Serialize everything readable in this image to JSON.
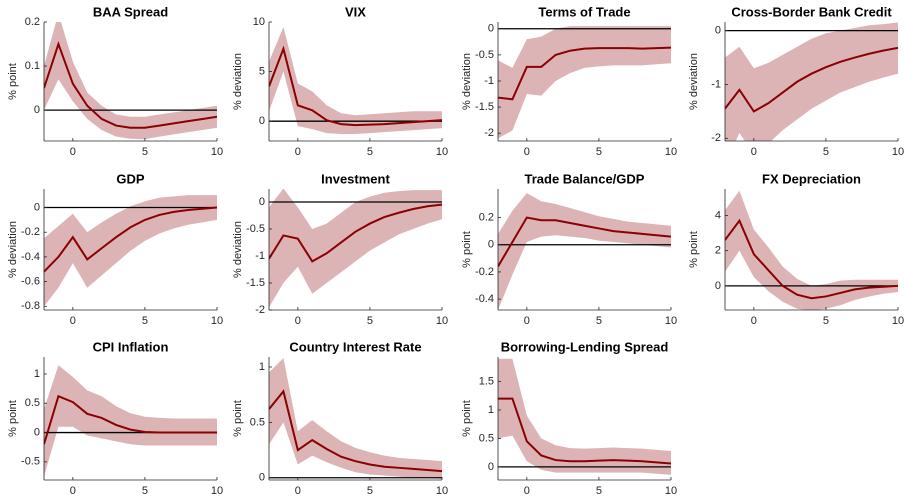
{
  "chart_data": [
    {
      "type": "line",
      "title": "BAA Spread",
      "ylabel": "% point",
      "x": [
        -2,
        -1,
        0,
        1,
        2,
        3,
        4,
        5,
        6,
        7,
        8,
        9,
        10
      ],
      "values": [
        0.05,
        0.15,
        0.06,
        0.01,
        -0.02,
        -0.035,
        -0.04,
        -0.04,
        -0.035,
        -0.03,
        -0.025,
        -0.02,
        -0.015
      ],
      "lower": [
        0.0,
        0.07,
        0.02,
        -0.02,
        -0.045,
        -0.06,
        -0.065,
        -0.066,
        -0.06,
        -0.055,
        -0.05,
        -0.045,
        -0.04
      ],
      "upper": [
        0.1,
        0.22,
        0.11,
        0.04,
        0.01,
        -0.01,
        -0.015,
        -0.015,
        -0.01,
        -0.005,
        0,
        0.005,
        0.01
      ],
      "color": "#8b0000",
      "band_color": "#dcb4b6",
      "zero_line": true,
      "xlim": [
        -2,
        10
      ],
      "xticks": [
        0,
        5,
        10
      ],
      "ylim": [
        -0.07,
        0.2
      ],
      "yticks": [
        0,
        0.1,
        0.2
      ]
    },
    {
      "type": "line",
      "title": "VIX",
      "ylabel": "% deviation",
      "x": [
        -2,
        -1,
        0,
        1,
        2,
        3,
        4,
        5,
        6,
        7,
        8,
        9,
        10
      ],
      "values": [
        3.5,
        7.3,
        1.6,
        1.1,
        0.1,
        -0.3,
        -0.4,
        -0.35,
        -0.3,
        -0.2,
        -0.1,
        0,
        0.1
      ],
      "lower": [
        1,
        5,
        -0.5,
        -0.8,
        -1.2,
        -1.3,
        -1.3,
        -1.2,
        -1.1,
        -1.0,
        -0.9,
        -0.8,
        -0.7
      ],
      "upper": [
        6,
        9.5,
        3.8,
        3,
        1.6,
        0.8,
        0.6,
        0.7,
        0.8,
        0.9,
        1,
        1,
        1
      ],
      "color": "#8b0000",
      "band_color": "#dcb4b6",
      "zero_line": true,
      "xlim": [
        -2,
        10
      ],
      "xticks": [
        0,
        5,
        10
      ],
      "ylim": [
        -2,
        10
      ],
      "yticks": [
        0,
        5,
        10
      ]
    },
    {
      "type": "line",
      "title": "Terms of Trade",
      "ylabel": "% deviation",
      "x": [
        -2,
        -1,
        0,
        1,
        2,
        3,
        4,
        5,
        6,
        7,
        8,
        9,
        10
      ],
      "values": [
        -1.32,
        -1.35,
        -0.73,
        -0.73,
        -0.5,
        -0.42,
        -0.38,
        -0.37,
        -0.37,
        -0.37,
        -0.38,
        -0.37,
        -0.36
      ],
      "lower": [
        -2.1,
        -1.95,
        -1.25,
        -1.28,
        -1.0,
        -0.85,
        -0.75,
        -0.72,
        -0.7,
        -0.7,
        -0.7,
        -0.68,
        -0.66
      ],
      "upper": [
        -0.6,
        -0.75,
        -0.2,
        -0.15,
        0,
        0.05,
        0.05,
        0.05,
        0.05,
        0.05,
        0.05,
        0.05,
        0.05
      ],
      "color": "#8b0000",
      "band_color": "#dcb4b6",
      "zero_line": true,
      "xlim": [
        -2,
        10
      ],
      "xticks": [
        0,
        5,
        10
      ],
      "ylim": [
        -2.15,
        0.13
      ],
      "yticks": [
        -2,
        -1.5,
        -1,
        -0.5,
        0
      ]
    },
    {
      "type": "line",
      "title": "Cross-Border Bank Credit",
      "ylabel": "% deviation",
      "x": [
        -2,
        -1,
        0,
        1,
        2,
        3,
        4,
        5,
        6,
        7,
        8,
        9,
        10
      ],
      "values": [
        -1.45,
        -1.1,
        -1.5,
        -1.35,
        -1.15,
        -0.95,
        -0.8,
        -0.68,
        -0.58,
        -0.5,
        -0.43,
        -0.37,
        -0.32
      ],
      "lower": [
        -2.5,
        -1.9,
        -2.3,
        -2.1,
        -1.85,
        -1.65,
        -1.45,
        -1.3,
        -1.15,
        -1.05,
        -0.95,
        -0.87,
        -0.8
      ],
      "upper": [
        -0.5,
        -0.3,
        -0.7,
        -0.6,
        -0.45,
        -0.3,
        -0.15,
        -0.05,
        0,
        0.05,
        0.1,
        0.12,
        0.15
      ],
      "color": "#8b0000",
      "band_color": "#dcb4b6",
      "zero_line": true,
      "xlim": [
        -2,
        10
      ],
      "xticks": [
        0,
        5,
        10
      ],
      "ylim": [
        -2.05,
        0.16
      ],
      "yticks": [
        -2,
        -1,
        0
      ]
    },
    {
      "type": "line",
      "title": "GDP",
      "ylabel": "% deviation",
      "x": [
        -2,
        -1,
        0,
        1,
        2,
        3,
        4,
        5,
        6,
        7,
        8,
        9,
        10
      ],
      "values": [
        -0.52,
        -0.4,
        -0.24,
        -0.42,
        -0.33,
        -0.24,
        -0.16,
        -0.1,
        -0.06,
        -0.035,
        -0.02,
        -0.01,
        0
      ],
      "lower": [
        -0.8,
        -0.65,
        -0.45,
        -0.65,
        -0.55,
        -0.45,
        -0.35,
        -0.27,
        -0.21,
        -0.17,
        -0.14,
        -0.12,
        -0.1
      ],
      "upper": [
        -0.25,
        -0.15,
        -0.05,
        -0.2,
        -0.12,
        -0.05,
        0.01,
        0.05,
        0.08,
        0.09,
        0.1,
        0.1,
        0.1
      ],
      "color": "#8b0000",
      "band_color": "#dcb4b6",
      "zero_line": true,
      "xlim": [
        -2,
        10
      ],
      "xticks": [
        0,
        5,
        10
      ],
      "ylim": [
        -0.83,
        0.15
      ],
      "yticks": [
        -0.8,
        -0.6,
        -0.4,
        -0.2,
        0
      ]
    },
    {
      "type": "line",
      "title": "Investment",
      "ylabel": "% deviation",
      "x": [
        -2,
        -1,
        0,
        1,
        2,
        3,
        4,
        5,
        6,
        7,
        8,
        9,
        10
      ],
      "values": [
        -1.05,
        -0.62,
        -0.68,
        -1.1,
        -0.95,
        -0.75,
        -0.55,
        -0.4,
        -0.28,
        -0.2,
        -0.13,
        -0.08,
        -0.05
      ],
      "lower": [
        -1.95,
        -1.5,
        -1.2,
        -1.7,
        -1.5,
        -1.3,
        -1.1,
        -0.9,
        -0.75,
        -0.6,
        -0.5,
        -0.4,
        -0.32
      ],
      "upper": [
        -0.1,
        0.25,
        -0.1,
        -0.5,
        -0.4,
        -0.2,
        0,
        0.1,
        0.17,
        0.2,
        0.22,
        0.22,
        0.22
      ],
      "color": "#8b0000",
      "band_color": "#dcb4b6",
      "zero_line": true,
      "xlim": [
        -2,
        10
      ],
      "xticks": [
        0,
        5,
        10
      ],
      "ylim": [
        -2,
        0.24
      ],
      "yticks": [
        -2,
        -1.5,
        -1,
        -0.5,
        0
      ]
    },
    {
      "type": "line",
      "title": "Trade Balance/GDP",
      "ylabel": "% point",
      "x": [
        -2,
        -1,
        0,
        1,
        2,
        3,
        4,
        5,
        6,
        7,
        8,
        9,
        10
      ],
      "values": [
        -0.16,
        0.02,
        0.2,
        0.18,
        0.18,
        0.16,
        0.14,
        0.12,
        0.1,
        0.09,
        0.08,
        0.07,
        0.06
      ],
      "lower": [
        -0.48,
        -0.22,
        0.02,
        0.06,
        0.07,
        0.06,
        0.05,
        0.03,
        0.02,
        0.01,
        0.0,
        -0.01,
        -0.02
      ],
      "upper": [
        0.08,
        0.25,
        0.38,
        0.32,
        0.3,
        0.27,
        0.24,
        0.21,
        0.19,
        0.17,
        0.16,
        0.15,
        0.14
      ],
      "color": "#8b0000",
      "band_color": "#dcb4b6",
      "zero_line": true,
      "xlim": [
        -2,
        10
      ],
      "xticks": [
        0,
        5,
        10
      ],
      "ylim": [
        -0.48,
        0.41
      ],
      "yticks": [
        -0.4,
        -0.2,
        0,
        0.2
      ]
    },
    {
      "type": "line",
      "title": "FX Depreciation",
      "ylabel": "% point",
      "x": [
        -2,
        -1,
        0,
        1,
        2,
        3,
        4,
        5,
        6,
        7,
        8,
        9,
        10
      ],
      "values": [
        2.6,
        3.7,
        1.8,
        0.9,
        0,
        -0.5,
        -0.7,
        -0.6,
        -0.4,
        -0.2,
        -0.1,
        -0.05,
        0
      ],
      "lower": [
        0.8,
        2.0,
        0.5,
        -0.3,
        -0.9,
        -1.3,
        -1.4,
        -1.3,
        -1.1,
        -0.8,
        -0.6,
        -0.45,
        -0.35
      ],
      "upper": [
        4.3,
        5.4,
        3.2,
        2.2,
        1.1,
        0.4,
        0,
        0.1,
        0.3,
        0.35,
        0.35,
        0.35,
        0.35
      ],
      "color": "#8b0000",
      "band_color": "#dcb4b6",
      "zero_line": true,
      "xlim": [
        -2,
        10
      ],
      "xticks": [
        0,
        5,
        10
      ],
      "ylim": [
        -1.37,
        5.5
      ],
      "yticks": [
        0,
        2,
        4
      ]
    },
    {
      "type": "line",
      "title": "CPI Inflation",
      "ylabel": "% point",
      "x": [
        -2,
        -1,
        0,
        1,
        2,
        3,
        4,
        5,
        6,
        7,
        8,
        9,
        10
      ],
      "values": [
        -0.2,
        0.62,
        0.52,
        0.32,
        0.25,
        0.13,
        0.05,
        0.01,
        0,
        0,
        0,
        0,
        0
      ],
      "lower": [
        -0.75,
        0.1,
        0.1,
        -0.05,
        -0.1,
        -0.15,
        -0.2,
        -0.22,
        -0.22,
        -0.22,
        -0.22,
        -0.22,
        -0.22
      ],
      "upper": [
        0.4,
        1.15,
        0.95,
        0.72,
        0.62,
        0.45,
        0.33,
        0.27,
        0.25,
        0.24,
        0.24,
        0.24,
        0.24
      ],
      "color": "#8b0000",
      "band_color": "#dcb4b6",
      "zero_line": true,
      "xlim": [
        -2,
        10
      ],
      "xticks": [
        0,
        5,
        10
      ],
      "ylim": [
        -0.81,
        1.29
      ],
      "yticks": [
        -0.5,
        0,
        0.5,
        1
      ]
    },
    {
      "type": "line",
      "title": "Country Interest Rate",
      "ylabel": "% point",
      "x": [
        -2,
        -1,
        0,
        1,
        2,
        3,
        4,
        5,
        6,
        7,
        8,
        9,
        10
      ],
      "values": [
        0.62,
        0.78,
        0.25,
        0.34,
        0.26,
        0.19,
        0.15,
        0.12,
        0.1,
        0.09,
        0.08,
        0.07,
        0.06
      ],
      "lower": [
        0.3,
        0.5,
        0.12,
        0.2,
        0.14,
        0.09,
        0.05,
        0.03,
        0.02,
        0.01,
        0.0,
        0.0,
        -0.01
      ],
      "upper": [
        0.95,
        1.08,
        0.42,
        0.52,
        0.42,
        0.33,
        0.27,
        0.23,
        0.2,
        0.18,
        0.17,
        0.16,
        0.15
      ],
      "color": "#8b0000",
      "band_color": "#dcb4b6",
      "zero_line": true,
      "xlim": [
        -2,
        10
      ],
      "xticks": [
        0,
        5,
        10
      ],
      "ylim": [
        -0.02,
        1.09
      ],
      "yticks": [
        0,
        0.5,
        1
      ]
    },
    {
      "type": "line",
      "title": "Borrowing-Lending Spread",
      "ylabel": "% point",
      "x": [
        -2,
        -1,
        0,
        1,
        2,
        3,
        4,
        5,
        6,
        7,
        8,
        9,
        10
      ],
      "values": [
        1.2,
        1.2,
        0.45,
        0.2,
        0.12,
        0.1,
        0.1,
        0.11,
        0.12,
        0.11,
        0.1,
        0.08,
        0.06
      ],
      "lower": [
        0.5,
        0.55,
        0.1,
        -0.05,
        -0.1,
        -0.1,
        -0.1,
        -0.1,
        -0.1,
        -0.1,
        -0.1,
        -0.12,
        -0.14
      ],
      "upper": [
        1.9,
        1.9,
        0.9,
        0.5,
        0.38,
        0.33,
        0.32,
        0.33,
        0.34,
        0.33,
        0.32,
        0.3,
        0.28
      ],
      "color": "#8b0000",
      "band_color": "#dcb4b6",
      "zero_line": true,
      "xlim": [
        -2,
        10
      ],
      "xticks": [
        0,
        5,
        10
      ],
      "ylim": [
        -0.23,
        1.93
      ],
      "yticks": [
        0,
        0.5,
        1,
        1.5
      ]
    }
  ]
}
